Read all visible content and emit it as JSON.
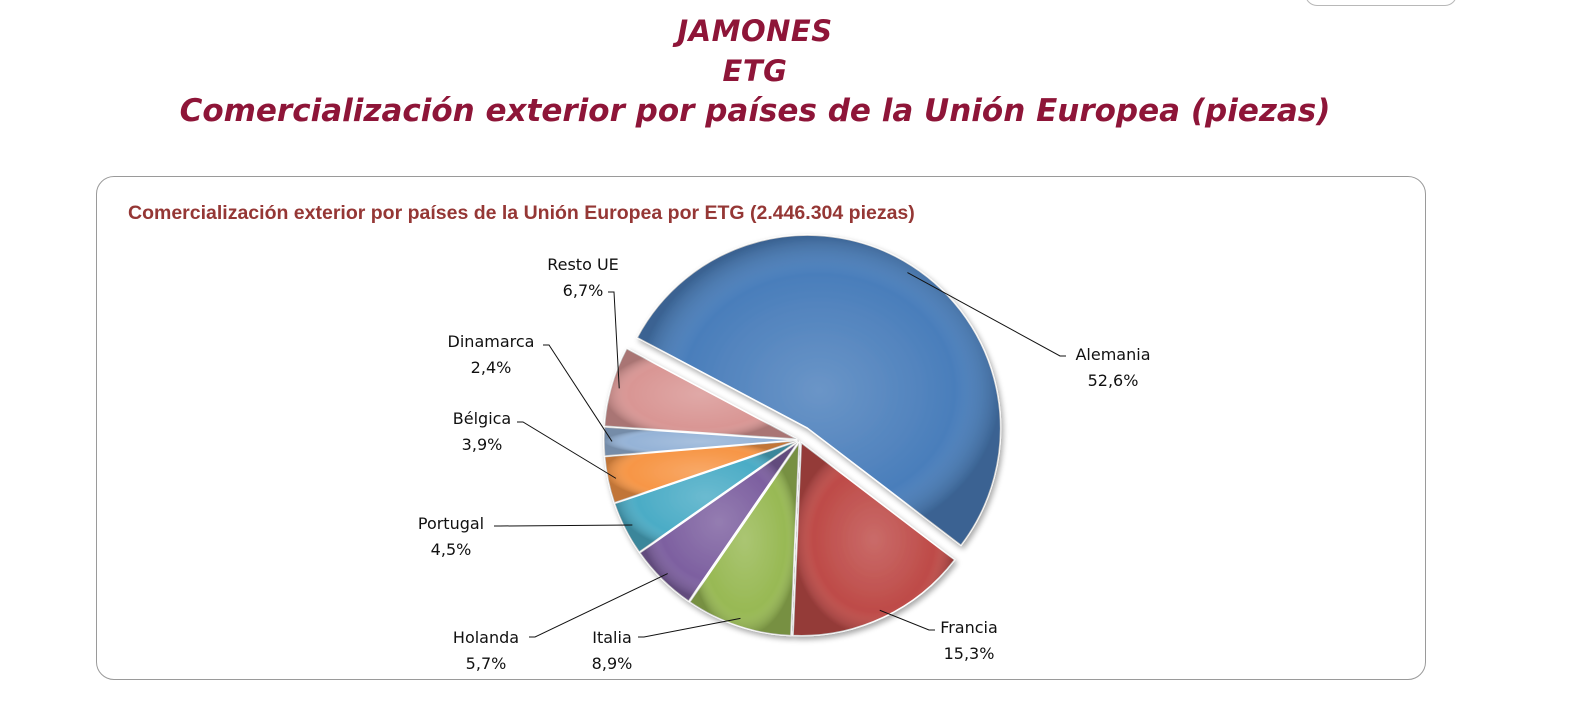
{
  "header": {
    "line1": "JAMONES",
    "line2": "ETG",
    "line3": "Comercialización exterior por países de la Unión Europea (piezas)"
  },
  "chart_data": {
    "type": "pie",
    "title": "Comercialización exterior por países de la Unión Europea por ETG (2.446.304 piezas)",
    "categories": [
      "Alemania",
      "Francia",
      "Italia",
      "Holanda",
      "Portugal",
      "Bélgica",
      "Dinamarca",
      "Resto UE"
    ],
    "values": [
      52.6,
      15.3,
      8.9,
      5.7,
      4.5,
      3.9,
      2.4,
      6.7
    ],
    "labels": [
      "52,6%",
      "15,3%",
      "8,9%",
      "5,7%",
      "4,5%",
      "3,9%",
      "2,4%",
      "6,7%"
    ],
    "unit": "%",
    "colors": [
      "#4a7ebb",
      "#be4b48",
      "#98b954",
      "#7d60a0",
      "#4bacc6",
      "#f79646",
      "#95b3d7",
      "#d99694"
    ],
    "exploded_slice": "Alemania",
    "legend": "none",
    "label_style": "callout"
  }
}
